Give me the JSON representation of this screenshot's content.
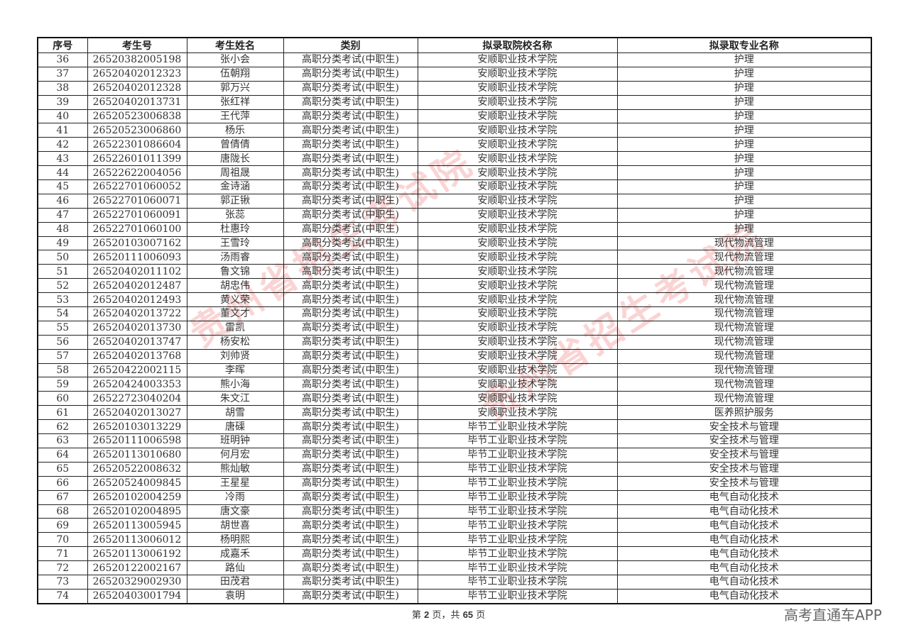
{
  "table": {
    "headers": [
      "序号",
      "考生号",
      "考生姓名",
      "类别",
      "拟录取院校名称",
      "拟录取专业名称"
    ],
    "rows": [
      [
        "36",
        "26520382005198",
        "张小会",
        "高职分类考试(中职生)",
        "安顺职业技术学院",
        "护理"
      ],
      [
        "37",
        "26520402012323",
        "伍朝翔",
        "高职分类考试(中职生)",
        "安顺职业技术学院",
        "护理"
      ],
      [
        "38",
        "26520402012328",
        "郭万兴",
        "高职分类考试(中职生)",
        "安顺职业技术学院",
        "护理"
      ],
      [
        "39",
        "26520402013731",
        "张红祥",
        "高职分类考试(中职生)",
        "安顺职业技术学院",
        "护理"
      ],
      [
        "40",
        "26520523006838",
        "王代萍",
        "高职分类考试(中职生)",
        "安顺职业技术学院",
        "护理"
      ],
      [
        "41",
        "26520523006860",
        "杨乐",
        "高职分类考试(中职生)",
        "安顺职业技术学院",
        "护理"
      ],
      [
        "42",
        "26522301086604",
        "曾倩倩",
        "高职分类考试(中职生)",
        "安顺职业技术学院",
        "护理"
      ],
      [
        "43",
        "26522601011399",
        "唐陇长",
        "高职分类考试(中职生)",
        "安顺职业技术学院",
        "护理"
      ],
      [
        "44",
        "26522622004056",
        "周祖晟",
        "高职分类考试(中职生)",
        "安顺职业技术学院",
        "护理"
      ],
      [
        "45",
        "26522701060052",
        "金诗涵",
        "高职分类考试(中职生)",
        "安顺职业技术学院",
        "护理"
      ],
      [
        "46",
        "26522701060071",
        "郭正锹",
        "高职分类考试(中职生)",
        "安顺职业技术学院",
        "护理"
      ],
      [
        "47",
        "26522701060091",
        "张蕊",
        "高职分类考试(中职生)",
        "安顺职业技术学院",
        "护理"
      ],
      [
        "48",
        "26522701060100",
        "杜惠玲",
        "高职分类考试(中职生)",
        "安顺职业技术学院",
        "护理"
      ],
      [
        "49",
        "26520103007162",
        "王雪玲",
        "高职分类考试(中职生)",
        "安顺职业技术学院",
        "现代物流管理"
      ],
      [
        "50",
        "26520111006093",
        "汤雨睿",
        "高职分类考试(中职生)",
        "安顺职业技术学院",
        "现代物流管理"
      ],
      [
        "51",
        "26520402011102",
        "鲁文锦",
        "高职分类考试(中职生)",
        "安顺职业技术学院",
        "现代物流管理"
      ],
      [
        "52",
        "26520402012487",
        "胡忠伟",
        "高职分类考试(中职生)",
        "安顺职业技术学院",
        "现代物流管理"
      ],
      [
        "53",
        "26520402012493",
        "黄义荣",
        "高职分类考试(中职生)",
        "安顺职业技术学院",
        "现代物流管理"
      ],
      [
        "54",
        "26520402013722",
        "董文才",
        "高职分类考试(中职生)",
        "安顺职业技术学院",
        "现代物流管理"
      ],
      [
        "55",
        "26520402013730",
        "雷凯",
        "高职分类考试(中职生)",
        "安顺职业技术学院",
        "现代物流管理"
      ],
      [
        "56",
        "26520402013747",
        "杨安松",
        "高职分类考试(中职生)",
        "安顺职业技术学院",
        "现代物流管理"
      ],
      [
        "57",
        "26520402013768",
        "刘帅贤",
        "高职分类考试(中职生)",
        "安顺职业技术学院",
        "现代物流管理"
      ],
      [
        "58",
        "26520422002115",
        "李晖",
        "高职分类考试(中职生)",
        "安顺职业技术学院",
        "现代物流管理"
      ],
      [
        "59",
        "26520424003353",
        "熊小海",
        "高职分类考试(中职生)",
        "安顺职业技术学院",
        "现代物流管理"
      ],
      [
        "60",
        "26522723040204",
        "朱文江",
        "高职分类考试(中职生)",
        "安顺职业技术学院",
        "现代物流管理"
      ],
      [
        "61",
        "26520402013027",
        "胡雪",
        "高职分类考试(中职生)",
        "安顺职业技术学院",
        "医养照护服务"
      ],
      [
        "62",
        "26520103013229",
        "唐磲",
        "高职分类考试(中职生)",
        "毕节工业职业技术学院",
        "安全技术与管理"
      ],
      [
        "63",
        "26520111006598",
        "班明钟",
        "高职分类考试(中职生)",
        "毕节工业职业技术学院",
        "安全技术与管理"
      ],
      [
        "64",
        "26520113010680",
        "何月宏",
        "高职分类考试(中职生)",
        "毕节工业职业技术学院",
        "安全技术与管理"
      ],
      [
        "65",
        "26520522008632",
        "熊灿敏",
        "高职分类考试(中职生)",
        "毕节工业职业技术学院",
        "安全技术与管理"
      ],
      [
        "66",
        "26520524009845",
        "王星星",
        "高职分类考试(中职生)",
        "毕节工业职业技术学院",
        "安全技术与管理"
      ],
      [
        "67",
        "26520102004259",
        "冷雨",
        "高职分类考试(中职生)",
        "毕节工业职业技术学院",
        "电气自动化技术"
      ],
      [
        "68",
        "26520102004895",
        "唐文豪",
        "高职分类考试(中职生)",
        "毕节工业职业技术学院",
        "电气自动化技术"
      ],
      [
        "69",
        "26520113005945",
        "胡世喜",
        "高职分类考试(中职生)",
        "毕节工业职业技术学院",
        "电气自动化技术"
      ],
      [
        "70",
        "26520113006012",
        "杨明熙",
        "高职分类考试(中职生)",
        "毕节工业职业技术学院",
        "电气自动化技术"
      ],
      [
        "71",
        "26520113006192",
        "成嘉禾",
        "高职分类考试(中职生)",
        "毕节工业职业技术学院",
        "电气自动化技术"
      ],
      [
        "72",
        "26520122002167",
        "路仙",
        "高职分类考试(中职生)",
        "毕节工业职业技术学院",
        "电气自动化技术"
      ],
      [
        "73",
        "26520329002930",
        "田茂君",
        "高职分类考试(中职生)",
        "毕节工业职业技术学院",
        "电气自动化技术"
      ],
      [
        "74",
        "26520403001794",
        "袁明",
        "高职分类考试(中职生)",
        "毕节工业职业技术学院",
        "电气自动化技术"
      ]
    ]
  },
  "watermark": "贵州省招生考试院",
  "footer": {
    "prefix": "第",
    "page": "2",
    "middle": "页，共",
    "total": "65",
    "suffix": "页"
  },
  "brand": "高考直通车APP",
  "colors": {
    "watermark": "#e63c3c"
  }
}
